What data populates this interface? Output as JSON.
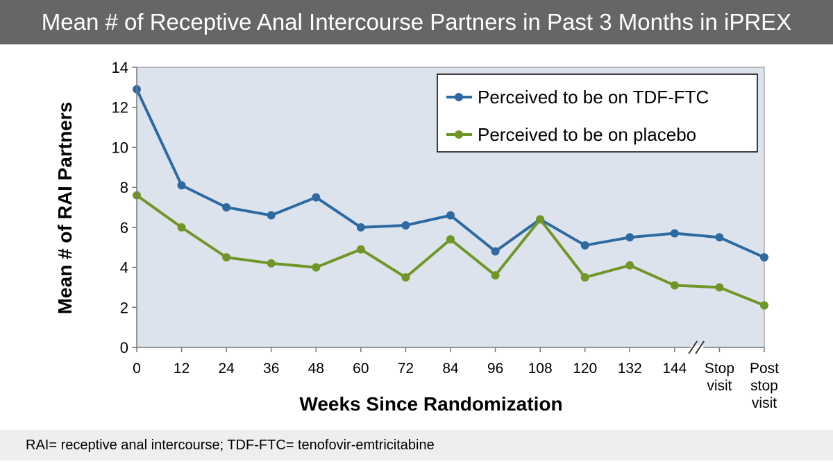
{
  "title": "Mean # of Receptive Anal Intercourse Partners in Past 3 Months in iPREX",
  "footnote": "RAI= receptive anal intercourse; TDF-FTC= tenofovir-emtricitabine",
  "colors": {
    "plot_bg": "#dde3ed",
    "tdf": "#2e6aa2",
    "placebo": "#6f9626",
    "title_bg": "#666666"
  },
  "chart_data": {
    "type": "line",
    "title": "Mean # of Receptive Anal Intercourse Partners in Past 3 Months in iPREX",
    "xlabel": "Weeks Since Randomization",
    "ylabel": "Mean # of RAI Partners",
    "categories": [
      "0",
      "12",
      "24",
      "36",
      "48",
      "60",
      "72",
      "84",
      "96",
      "108",
      "120",
      "132",
      "144",
      "Stop visit",
      "Post stop visit"
    ],
    "tick_labels": [
      [
        "0"
      ],
      [
        "12"
      ],
      [
        "24"
      ],
      [
        "36"
      ],
      [
        "48"
      ],
      [
        "60"
      ],
      [
        "72"
      ],
      [
        "84"
      ],
      [
        "96"
      ],
      [
        "108"
      ],
      [
        "120"
      ],
      [
        "132"
      ],
      [
        "144"
      ],
      [
        "Stop",
        "visit"
      ],
      [
        "Post",
        "stop",
        "visit"
      ]
    ],
    "yticks": [
      "0",
      "2",
      "4",
      "6",
      "8",
      "10",
      "12",
      "14"
    ],
    "ylim": [
      0,
      14
    ],
    "series": [
      {
        "name": "Perceived to be on TDF-FTC",
        "color": "#2e6aa2",
        "values": [
          12.9,
          8.1,
          7.0,
          6.6,
          7.5,
          6.0,
          6.1,
          6.6,
          4.8,
          6.4,
          5.1,
          5.5,
          5.7,
          5.5,
          4.5
        ]
      },
      {
        "name": "Perceived to be on placebo",
        "color": "#6f9626",
        "values": [
          7.6,
          6.0,
          4.5,
          4.2,
          4.0,
          4.9,
          3.5,
          5.4,
          3.6,
          6.4,
          3.5,
          4.1,
          3.1,
          3.0,
          2.1
        ]
      }
    ],
    "legend_position": "top-right",
    "axis_break": "between 144 and Stop visit"
  }
}
